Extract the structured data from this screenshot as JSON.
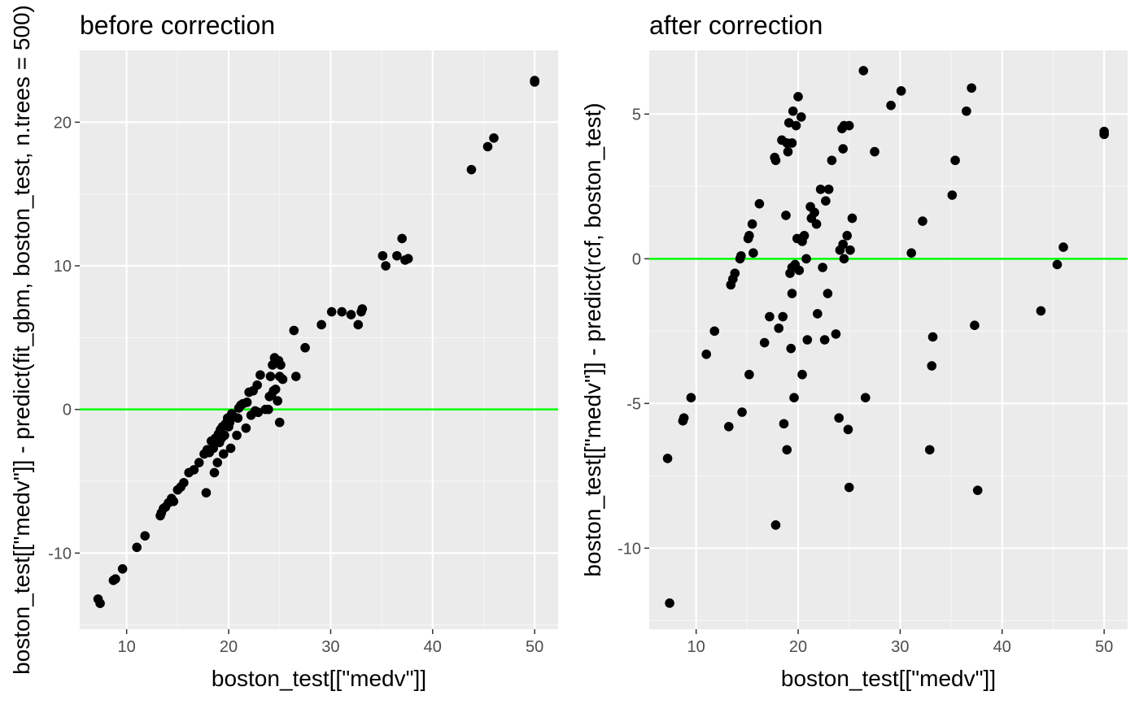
{
  "colors": {
    "panel_background": "#ebebeb",
    "grid_major": "#ffffff",
    "grid_minor": "#f5f5f5",
    "points": "#000000",
    "reference_line": "#00ff00",
    "tick_text": "#4d4d4d",
    "tick_mark": "#333333"
  },
  "chart_data": [
    {
      "type": "scatter",
      "title": "before correction",
      "xlabel": "boston_test[[\"medv\"]]",
      "ylabel": "boston_test[[\"medv\"]] - predict(fit_gbm, boston_test, n.trees = 500)",
      "xlim": [
        5.4,
        52.3
      ],
      "ylim": [
        -15.3,
        25.0
      ],
      "xticks": [
        10,
        20,
        30,
        40,
        50
      ],
      "yticks": [
        -10,
        0,
        10,
        20
      ],
      "grid": true,
      "hline": 0,
      "points": [
        [
          7.2,
          -13.2
        ],
        [
          7.4,
          -13.5
        ],
        [
          8.7,
          -11.9
        ],
        [
          8.9,
          -11.8
        ],
        [
          9.6,
          -11.1
        ],
        [
          11.0,
          -9.6
        ],
        [
          11.8,
          -8.8
        ],
        [
          13.3,
          -7.4
        ],
        [
          13.4,
          -7.2
        ],
        [
          13.6,
          -6.9
        ],
        [
          13.8,
          -6.8
        ],
        [
          14.1,
          -6.5
        ],
        [
          14.4,
          -6.2
        ],
        [
          14.6,
          -6.4
        ],
        [
          15.0,
          -5.6
        ],
        [
          15.3,
          -5.4
        ],
        [
          15.6,
          -5.1
        ],
        [
          16.1,
          -4.4
        ],
        [
          16.6,
          -4.2
        ],
        [
          17.1,
          -3.7
        ],
        [
          17.6,
          -3.1
        ],
        [
          17.8,
          -5.8
        ],
        [
          17.9,
          -2.8
        ],
        [
          18.1,
          -3.0
        ],
        [
          18.3,
          -2.2
        ],
        [
          18.5,
          -2.7
        ],
        [
          18.6,
          -4.4
        ],
        [
          18.7,
          -2.0
        ],
        [
          18.9,
          -3.7
        ],
        [
          19.0,
          -1.7
        ],
        [
          19.1,
          -2.3
        ],
        [
          19.2,
          -1.4
        ],
        [
          19.3,
          -2.0
        ],
        [
          19.4,
          -1.2
        ],
        [
          19.5,
          -3.1
        ],
        [
          19.6,
          -1.8
        ],
        [
          19.7,
          -1.0
        ],
        [
          19.9,
          -0.6
        ],
        [
          20.0,
          -1.2
        ],
        [
          20.1,
          -0.9
        ],
        [
          20.2,
          -2.7
        ],
        [
          20.3,
          -0.3
        ],
        [
          20.5,
          -0.5
        ],
        [
          20.8,
          -1.8
        ],
        [
          20.9,
          -0.6
        ],
        [
          21.0,
          0.1
        ],
        [
          21.2,
          0.3
        ],
        [
          21.4,
          0.4
        ],
        [
          21.7,
          -1.3
        ],
        [
          21.8,
          0.5
        ],
        [
          22.0,
          1.2
        ],
        [
          22.2,
          -0.4
        ],
        [
          22.4,
          1.3
        ],
        [
          22.6,
          -0.1
        ],
        [
          22.8,
          1.7
        ],
        [
          22.9,
          -0.2
        ],
        [
          23.1,
          2.4
        ],
        [
          23.6,
          0.0
        ],
        [
          23.9,
          0.0
        ],
        [
          24.0,
          0.9
        ],
        [
          24.1,
          2.3
        ],
        [
          24.2,
          1.0
        ],
        [
          24.3,
          3.1
        ],
        [
          24.4,
          1.3
        ],
        [
          24.5,
          3.6
        ],
        [
          24.6,
          1.4
        ],
        [
          24.8,
          0.6
        ],
        [
          24.9,
          3.4
        ],
        [
          25.0,
          -0.9
        ],
        [
          25.0,
          2.3
        ],
        [
          25.1,
          3.1
        ],
        [
          25.3,
          2.1
        ],
        [
          26.4,
          5.5
        ],
        [
          26.6,
          2.3
        ],
        [
          27.5,
          4.3
        ],
        [
          29.1,
          5.9
        ],
        [
          30.1,
          6.8
        ],
        [
          31.1,
          6.8
        ],
        [
          32.0,
          6.6
        ],
        [
          32.7,
          5.9
        ],
        [
          33.0,
          6.8
        ],
        [
          33.1,
          7.0
        ],
        [
          35.1,
          10.7
        ],
        [
          35.4,
          10.0
        ],
        [
          36.5,
          10.7
        ],
        [
          37.0,
          11.9
        ],
        [
          37.3,
          10.4
        ],
        [
          37.6,
          10.5
        ],
        [
          43.8,
          16.7
        ],
        [
          45.4,
          18.3
        ],
        [
          46.0,
          18.9
        ],
        [
          50.0,
          22.9
        ],
        [
          50.0,
          22.8
        ]
      ]
    },
    {
      "type": "scatter",
      "title": "after correction",
      "xlabel": "boston_test[[\"medv\"]]",
      "ylabel": "boston_test[[\"medv\"]] - predict(rcf, boston_test)",
      "xlim": [
        5.4,
        52.3
      ],
      "ylim": [
        -12.8,
        7.2
      ],
      "xticks": [
        10,
        20,
        30,
        40,
        50
      ],
      "yticks": [
        -10,
        -5,
        0,
        5
      ],
      "grid": true,
      "hline": 0,
      "points": [
        [
          7.2,
          -6.9
        ],
        [
          7.4,
          -11.9
        ],
        [
          8.7,
          -5.6
        ],
        [
          8.8,
          -5.5
        ],
        [
          9.5,
          -4.8
        ],
        [
          11.0,
          -3.3
        ],
        [
          11.8,
          -2.5
        ],
        [
          13.2,
          -5.8
        ],
        [
          13.4,
          -0.9
        ],
        [
          13.6,
          -0.7
        ],
        [
          13.8,
          -0.5
        ],
        [
          14.3,
          0.0
        ],
        [
          14.4,
          0.1
        ],
        [
          14.5,
          -5.3
        ],
        [
          15.1,
          0.7
        ],
        [
          15.2,
          0.8
        ],
        [
          15.2,
          -4.0
        ],
        [
          15.5,
          1.2
        ],
        [
          15.6,
          0.2
        ],
        [
          16.2,
          1.9
        ],
        [
          16.7,
          -2.9
        ],
        [
          17.2,
          -2.0
        ],
        [
          17.7,
          3.5
        ],
        [
          17.8,
          3.4
        ],
        [
          17.8,
          -9.2
        ],
        [
          18.1,
          -2.4
        ],
        [
          18.4,
          4.1
        ],
        [
          18.5,
          -2.0
        ],
        [
          18.6,
          -5.7
        ],
        [
          18.8,
          1.5
        ],
        [
          18.9,
          4.0
        ],
        [
          18.9,
          -6.6
        ],
        [
          19.0,
          3.7
        ],
        [
          19.1,
          4.7
        ],
        [
          19.2,
          -0.5
        ],
        [
          19.3,
          -3.1
        ],
        [
          19.4,
          -1.2
        ],
        [
          19.4,
          -0.3
        ],
        [
          19.4,
          4.0
        ],
        [
          19.5,
          5.1
        ],
        [
          19.6,
          -4.8
        ],
        [
          19.7,
          -0.2
        ],
        [
          19.8,
          4.6
        ],
        [
          19.9,
          0.7
        ],
        [
          20.0,
          5.6
        ],
        [
          20.1,
          -0.4
        ],
        [
          20.3,
          4.9
        ],
        [
          20.4,
          -4.0
        ],
        [
          20.4,
          0.6
        ],
        [
          20.6,
          0.8
        ],
        [
          20.8,
          0.0
        ],
        [
          20.9,
          -2.8
        ],
        [
          21.2,
          1.8
        ],
        [
          21.3,
          1.4
        ],
        [
          21.6,
          1.6
        ],
        [
          21.8,
          1.2
        ],
        [
          21.9,
          -1.9
        ],
        [
          22.2,
          2.4
        ],
        [
          22.4,
          -0.3
        ],
        [
          22.6,
          -2.8
        ],
        [
          22.7,
          2.0
        ],
        [
          22.9,
          -1.2
        ],
        [
          23.0,
          2.4
        ],
        [
          23.3,
          3.4
        ],
        [
          23.7,
          -2.6
        ],
        [
          24.0,
          -5.5
        ],
        [
          24.1,
          0.3
        ],
        [
          24.3,
          4.5
        ],
        [
          24.4,
          3.8
        ],
        [
          24.4,
          0.5
        ],
        [
          24.5,
          0.0
        ],
        [
          24.5,
          4.6
        ],
        [
          24.8,
          0.8
        ],
        [
          24.9,
          -5.9
        ],
        [
          25.0,
          4.6
        ],
        [
          25.0,
          -7.9
        ],
        [
          25.1,
          0.3
        ],
        [
          25.3,
          1.4
        ],
        [
          26.4,
          6.5
        ],
        [
          26.6,
          -4.8
        ],
        [
          27.5,
          3.7
        ],
        [
          29.1,
          5.3
        ],
        [
          30.1,
          5.8
        ],
        [
          31.1,
          0.2
        ],
        [
          32.2,
          1.3
        ],
        [
          32.9,
          -6.6
        ],
        [
          33.1,
          -3.7
        ],
        [
          33.2,
          -2.7
        ],
        [
          35.1,
          2.2
        ],
        [
          35.4,
          3.4
        ],
        [
          36.5,
          5.1
        ],
        [
          37.0,
          5.9
        ],
        [
          37.3,
          -2.3
        ],
        [
          37.6,
          -8.0
        ],
        [
          43.8,
          -1.8
        ],
        [
          45.4,
          -0.2
        ],
        [
          46.0,
          0.4
        ],
        [
          50.0,
          4.4
        ],
        [
          50.0,
          4.3
        ]
      ]
    }
  ]
}
